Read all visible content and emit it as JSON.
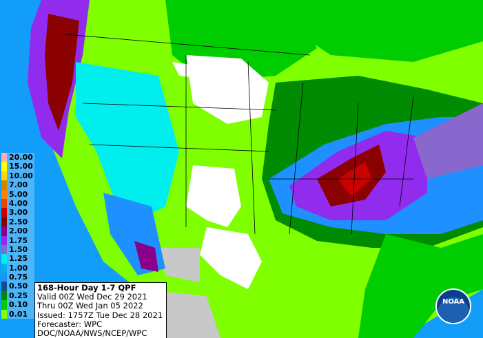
{
  "legend": {
    "items": [
      {
        "label": "20.00",
        "color": "#ffaeb9"
      },
      {
        "label": "15.00",
        "color": "#ffff00"
      },
      {
        "label": "10.00",
        "color": "#ffd700"
      },
      {
        "label": "7.00",
        "color": "#cd8500"
      },
      {
        "label": "5.00",
        "color": "#ff7f00"
      },
      {
        "label": "4.00",
        "color": "#ee4000"
      },
      {
        "label": "3.00",
        "color": "#cd0000"
      },
      {
        "label": "2.50",
        "color": "#8b0000"
      },
      {
        "label": "2.00",
        "color": "#8b008b"
      },
      {
        "label": "1.75",
        "color": "#912cee"
      },
      {
        "label": "1.50",
        "color": "#8968cd"
      },
      {
        "label": "1.25",
        "color": "#00eeee"
      },
      {
        "label": "1.00",
        "color": "#00b2ee"
      },
      {
        "label": "0.75",
        "color": "#1e90ff"
      },
      {
        "label": "0.50",
        "color": "#104e8b"
      },
      {
        "label": "0.25",
        "color": "#008b00"
      },
      {
        "label": "0.10",
        "color": "#00cd00"
      },
      {
        "label": "0.01",
        "color": "#7fff00"
      }
    ]
  },
  "info_box": {
    "title": "168-Hour Day 1-7 QPF",
    "lines": [
      "Valid 00Z Wed Dec 29 2021",
      "Thru 00Z Wed Jan 05 2022",
      "Issued: 1757Z Tue Dec 28 2021",
      "Forecaster: WPC",
      "DOC/NOAA/NWS/NCEP/WPC"
    ]
  },
  "logo": "NOAA"
}
